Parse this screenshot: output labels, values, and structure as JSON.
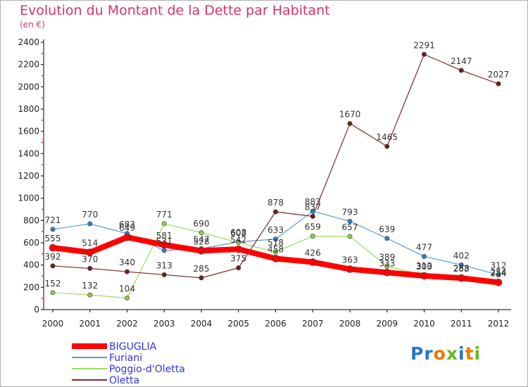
{
  "chart_data": {
    "type": "line",
    "title": "Evolution du Montant de la Dette par Habitant",
    "subtitle": "(en €)",
    "ylim": [
      0,
      2400
    ],
    "yticks": [
      0,
      200,
      400,
      600,
      800,
      1000,
      1200,
      1400,
      1600,
      1800,
      2000,
      2200,
      2400
    ],
    "categories": [
      "2000",
      "2001",
      "2002",
      "2003",
      "2004",
      "2005",
      "2006",
      "2007",
      "2008",
      "2009",
      "2010",
      "2011",
      "2012"
    ],
    "grid": false,
    "legend_position": "bottom-left",
    "series": [
      {
        "name": "BIGUGLIA",
        "color": "#ff0000",
        "point_color": "#ff0000",
        "width": 8,
        "values": [
          555,
          514,
          649,
          581,
          528,
          542,
          458,
          426,
          363,
          333,
          303,
          283,
          244
        ]
      },
      {
        "name": "Furiani",
        "color": "#5b9bd5",
        "point_color": "#3a7cc4",
        "width": 1.2,
        "values": [
          721,
          770,
          683,
          531,
          547,
          608,
          633,
          883,
          793,
          639,
          477,
          402,
          312
        ]
      },
      {
        "name": "Poggio-d'Oletta",
        "color": "#99dd66",
        "point_color": "#88cc44",
        "width": 1.2,
        "values": [
          152,
          132,
          104,
          771,
          690,
          602,
          518,
          659,
          657,
          389,
          310,
          288,
          254
        ]
      },
      {
        "name": "Oletta",
        "color": "#7a2a2a",
        "point_color": "#6a1f1f",
        "width": 1.2,
        "values": [
          392,
          370,
          340,
          313,
          285,
          375,
          878,
          837,
          1670,
          1465,
          2291,
          2147,
          2027
        ]
      }
    ]
  },
  "logo": {
    "letters": [
      "P",
      "r",
      "o",
      "x",
      "i",
      "t",
      "i"
    ],
    "colors": [
      "#2277cc",
      "#2277cc",
      "#ee7700",
      "#66bb22",
      "#2277cc",
      "#ee7700",
      "#66bb22"
    ]
  }
}
